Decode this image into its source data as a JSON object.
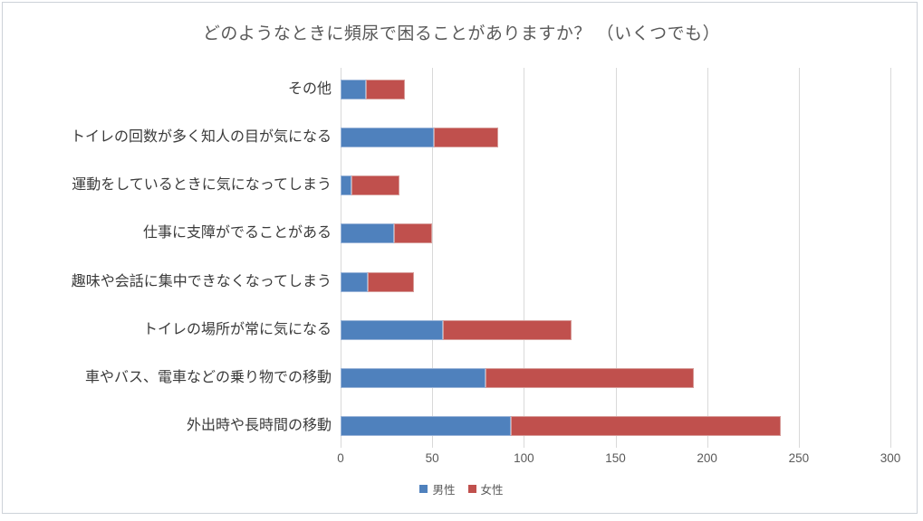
{
  "title": "どのようなときに頻尿で困ることがありますか？ （いくつでも）",
  "chart_data": {
    "type": "bar",
    "orientation": "horizontal",
    "stacked": true,
    "title": "どのようなときに頻尿で困ることがありますか？ （いくつでも）",
    "categories": [
      "その他",
      "トイレの回数が多く知人の目が気になる",
      "運動をしているときに気になってしまう",
      "仕事に支障がでることがある",
      "趣味や会話に集中できなくなってしまう",
      "トイレの場所が常に気になる",
      "車やバス、電車などの乗り物での移動",
      "外出時や長時間の移動"
    ],
    "series": [
      {
        "name": "男性",
        "color": "#4f81bd",
        "border_color": "#9ab4d8",
        "values": [
          14,
          51,
          6,
          29,
          15,
          56,
          79,
          93
        ]
      },
      {
        "name": "女性",
        "color": "#c0504d",
        "border_color": "#d79c99",
        "values": [
          21,
          35,
          26,
          21,
          25,
          70,
          114,
          147
        ]
      }
    ],
    "totals": [
      35,
      86,
      32,
      50,
      40,
      126,
      193,
      240
    ],
    "xlabel": "",
    "ylabel": "",
    "xlim": [
      0,
      300
    ],
    "xticks": [
      0,
      50,
      100,
      150,
      200,
      250,
      300
    ],
    "grid": true,
    "gridline_color": "#d9d9d9",
    "legend_position": "bottom",
    "background_color": "#ffffff",
    "frame_border_color": "#cdd2d8",
    "title_color": "#595959",
    "axis_label_color": "#595959",
    "category_label_color": "#3b3b3b"
  }
}
